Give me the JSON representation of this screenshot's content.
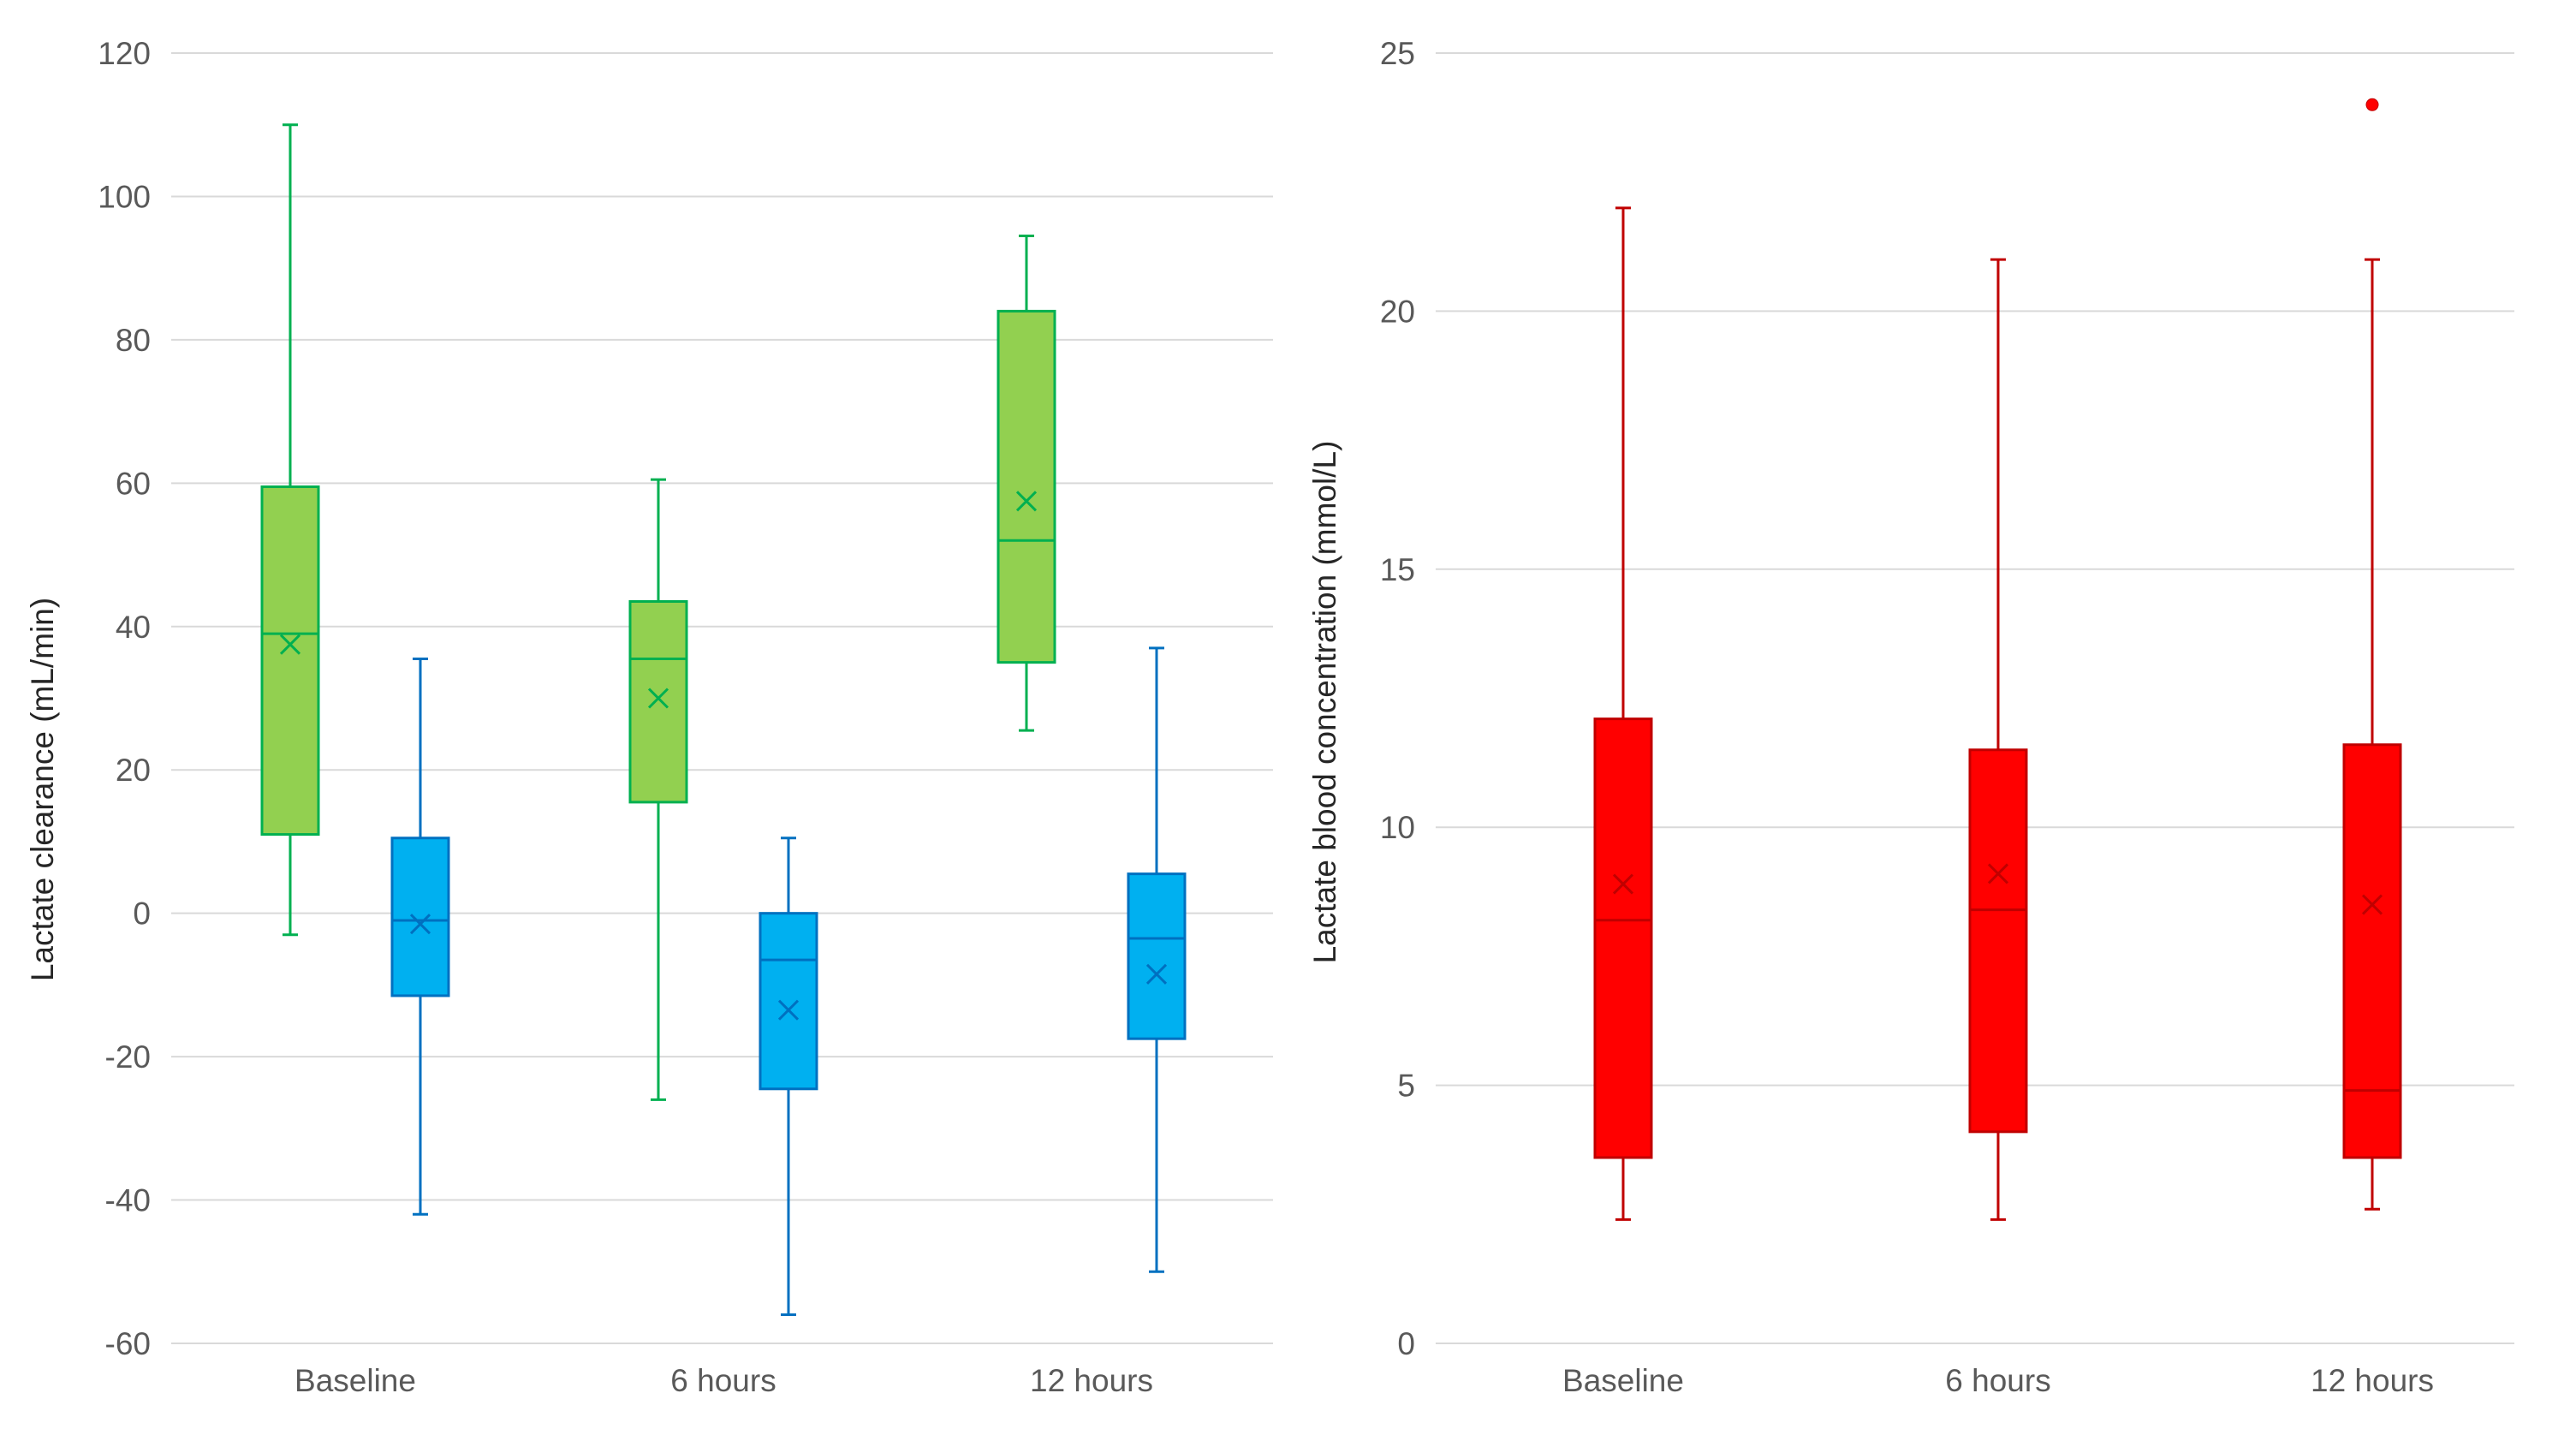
{
  "chart_data": [
    {
      "type": "box",
      "id": "left",
      "title": "",
      "xlabel": "",
      "ylabel": "Lactate clearance (mL/min)",
      "ylim": [
        -60,
        120
      ],
      "yticks": [
        -60,
        -40,
        -20,
        0,
        20,
        40,
        60,
        80,
        100,
        120
      ],
      "categories": [
        "Baseline",
        "6 hours",
        "12 hours"
      ],
      "grid": true,
      "series": [
        {
          "name": "green",
          "color": "#92d050",
          "edge": "#00b050",
          "boxes": [
            {
              "min": -3,
              "q1": 11,
              "median": 39,
              "q3": 59.5,
              "max": 110,
              "mean": 37.5
            },
            {
              "min": -26,
              "q1": 15.5,
              "median": 35.5,
              "q3": 43.5,
              "max": 60.5,
              "mean": 30
            },
            {
              "min": 25.5,
              "q1": 35,
              "median": 52,
              "q3": 84,
              "max": 94.5,
              "mean": 57.5
            }
          ]
        },
        {
          "name": "blue",
          "color": "#00b0f0",
          "edge": "#0070c0",
          "boxes": [
            {
              "min": -42,
              "q1": -11.5,
              "median": -1,
              "q3": 10.5,
              "max": 35.5,
              "mean": -1.5
            },
            {
              "min": -56,
              "q1": -24.5,
              "median": -6.5,
              "q3": 0,
              "max": 10.5,
              "mean": -13.5
            },
            {
              "min": -50,
              "q1": -17.5,
              "median": -3.5,
              "q3": 5.5,
              "max": 37,
              "mean": -8.5
            }
          ]
        }
      ]
    },
    {
      "type": "box",
      "id": "right",
      "title": "",
      "xlabel": "",
      "ylabel": "Lactate blood concentration (mmol/L)",
      "ylim": [
        0,
        25
      ],
      "yticks": [
        0,
        5,
        10,
        15,
        20,
        25
      ],
      "categories": [
        "Baseline",
        "6 hours",
        "12 hours"
      ],
      "grid": true,
      "series": [
        {
          "name": "red",
          "color": "#ff0000",
          "edge": "#c00000",
          "boxes": [
            {
              "min": 2.4,
              "q1": 3.6,
              "median": 8.2,
              "q3": 12.1,
              "max": 22,
              "mean": 8.9,
              "outliers": []
            },
            {
              "min": 2.4,
              "q1": 4.1,
              "median": 8.4,
              "q3": 11.5,
              "max": 21,
              "mean": 9.1,
              "outliers": []
            },
            {
              "min": 2.6,
              "q1": 3.6,
              "median": 4.9,
              "q3": 11.6,
              "max": 21,
              "mean": 8.5,
              "outliers": [
                24
              ]
            }
          ]
        }
      ]
    }
  ]
}
